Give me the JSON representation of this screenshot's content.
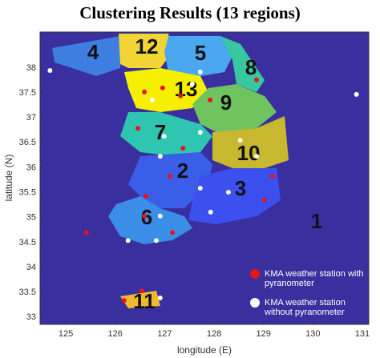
{
  "chart_data": {
    "type": "scatter",
    "title": "Clustering Results (13 regions)",
    "xlabel": "longitude (E)",
    "ylabel": "latitude (N)",
    "xlim": [
      124.48,
      131.13
    ],
    "ylim": [
      32.86,
      38.72
    ],
    "xticks": [
      125,
      126,
      127,
      128,
      129,
      130,
      131
    ],
    "yticks": [
      33,
      33.5,
      34,
      34.5,
      35,
      35.5,
      36,
      36.5,
      37,
      37.5,
      38
    ],
    "region_labels": [
      "1",
      "2",
      "3",
      "4",
      "5",
      "6",
      "7",
      "8",
      "9",
      "10",
      "11",
      "12",
      "13"
    ],
    "legend": "lower right",
    "series": [
      {
        "name": "KMA weather station with pyranometer",
        "color": "#e8141c",
        "x": [
          125.42,
          126.59,
          126.96,
          127.32,
          127.92,
          128.86,
          126.46,
          127.37,
          127.11,
          129.18,
          129.02,
          126.62,
          126.59,
          127.16,
          126.18,
          126.54
        ],
        "y": [
          34.7,
          37.52,
          37.6,
          37.44,
          37.36,
          37.76,
          36.79,
          36.39,
          35.83,
          35.83,
          35.35,
          35.43,
          35.03,
          34.7,
          33.34,
          33.53
        ]
      },
      {
        "name": "KMA weather station without pyranometer",
        "color": "#ffffff",
        "x": [
          124.68,
          127.72,
          127.56,
          126.75,
          126.99,
          127.72,
          128.53,
          128.86,
          126.91,
          127.72,
          128.29,
          126.91,
          126.26,
          126.83,
          127.93,
          130.88,
          126.91
        ],
        "y": [
          37.95,
          37.92,
          37.68,
          37.36,
          36.63,
          36.71,
          36.55,
          36.23,
          36.23,
          35.59,
          35.51,
          35.03,
          34.54,
          34.54,
          35.11,
          37.47,
          33.39
        ]
      }
    ]
  }
}
